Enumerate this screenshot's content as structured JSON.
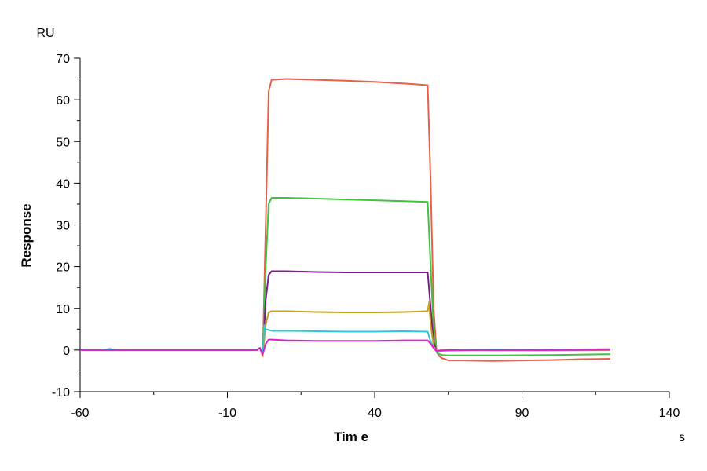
{
  "chart_data": {
    "type": "line",
    "title": "",
    "xlabel": "Tim e",
    "ylabel": "Response",
    "x_unit": "s",
    "y_unit": "RU",
    "xlim": [
      -60,
      140
    ],
    "ylim": [
      -10,
      70
    ],
    "x_ticks": [
      "-60",
      "-10",
      "40",
      "90",
      "140"
    ],
    "y_ticks": [
      "70",
      "60",
      "50",
      "40",
      "30",
      "20",
      "10",
      "0",
      "-10"
    ],
    "grid": false,
    "legend": "none",
    "series": [
      {
        "color": "#e8604c",
        "x": [
          -60,
          -20,
          0,
          1,
          2,
          3,
          4,
          5,
          10,
          20,
          30,
          40,
          50,
          58,
          59,
          60,
          61,
          62,
          63,
          64,
          65,
          70,
          80,
          90,
          100,
          110,
          120
        ],
        "y": [
          0,
          0,
          0,
          0.5,
          -1.5,
          30,
          62,
          64.8,
          65,
          64.8,
          64.6,
          64.3,
          63.9,
          63.5,
          40,
          10,
          -0.5,
          -1.5,
          -2,
          -2.2,
          -2.5,
          -2.5,
          -2.6,
          -2.5,
          -2.4,
          -2.2,
          -2.1
        ]
      },
      {
        "color": "#3ec43e",
        "x": [
          -60,
          0,
          1,
          2,
          3,
          4,
          5,
          10,
          20,
          30,
          40,
          50,
          58,
          59,
          60,
          61,
          62,
          63,
          65,
          80,
          100,
          120
        ],
        "y": [
          0,
          0,
          0.5,
          -1,
          20,
          35,
          36.5,
          36.5,
          36.3,
          36.1,
          35.9,
          35.7,
          35.5,
          20,
          5,
          -0.5,
          -1,
          -1.2,
          -1.3,
          -1.3,
          -1.2,
          -1
        ]
      },
      {
        "color": "#7b1d8a",
        "x": [
          -60,
          0,
          1,
          2,
          3,
          4,
          5,
          10,
          20,
          30,
          40,
          50,
          58,
          59,
          60,
          61,
          62,
          65,
          80,
          100,
          120
        ],
        "y": [
          0,
          0,
          0.5,
          -1,
          12,
          18,
          18.9,
          18.9,
          18.7,
          18.6,
          18.6,
          18.6,
          18.6,
          10,
          2,
          -0.3,
          -0.2,
          -0.1,
          0,
          0.1,
          0.2
        ]
      },
      {
        "color": "#c8a020",
        "x": [
          -60,
          0,
          1,
          2,
          3,
          4,
          5,
          10,
          20,
          30,
          40,
          50,
          58,
          58.5,
          59,
          60,
          61,
          62,
          65,
          80,
          100,
          120
        ],
        "y": [
          0,
          0,
          0.5,
          -1,
          6,
          9,
          9.3,
          9.3,
          9.1,
          9.0,
          9.0,
          9.1,
          9.3,
          11.5,
          6,
          1,
          -0.3,
          -0.1,
          0,
          -0.1,
          -0.1,
          0
        ]
      },
      {
        "color": "#2ec8d4",
        "x": [
          -60,
          -52,
          -50,
          -48,
          -20,
          0,
          1,
          2,
          2.5,
          3,
          4,
          5,
          10,
          20,
          30,
          40,
          50,
          58,
          59,
          60,
          61,
          62,
          65,
          80,
          100,
          120
        ],
        "y": [
          0,
          0,
          0.3,
          0,
          0,
          0,
          0.5,
          -1,
          6,
          5,
          4.8,
          4.6,
          4.6,
          4.5,
          4.4,
          4.4,
          4.5,
          4.4,
          2,
          0.5,
          -0.4,
          -0.2,
          0,
          0.1,
          0,
          0.1
        ]
      },
      {
        "color": "#e020d0",
        "x": [
          -60,
          0,
          1,
          2,
          3,
          4,
          5,
          10,
          20,
          30,
          40,
          50,
          58,
          59,
          60,
          61,
          62,
          65,
          80,
          100,
          120
        ],
        "y": [
          0,
          0,
          0.5,
          -1,
          1.5,
          2.5,
          2.5,
          2.3,
          2.2,
          2.2,
          2.2,
          2.3,
          2.3,
          1.5,
          0.5,
          -0.2,
          -0.1,
          0,
          0,
          0,
          0.1
        ]
      }
    ]
  }
}
